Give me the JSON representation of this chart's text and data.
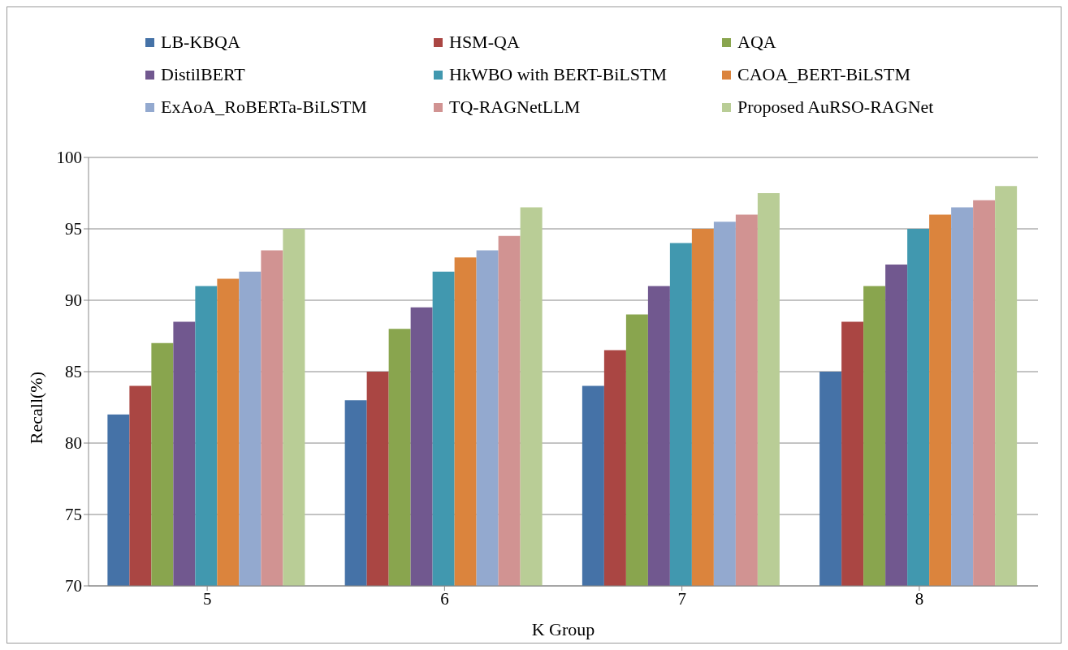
{
  "chart_data": {
    "type": "bar",
    "xlabel": "K Group",
    "ylabel": "Recall(%)",
    "categories": [
      "5",
      "6",
      "7",
      "8"
    ],
    "series": [
      {
        "name": "LB-KBQA",
        "color": "#4572a7",
        "values": [
          82,
          83,
          84,
          85
        ]
      },
      {
        "name": "HSM-QA",
        "color": "#aa4643",
        "values": [
          84,
          85,
          86.5,
          88.5
        ]
      },
      {
        "name": "AQA",
        "color": "#89a54e",
        "values": [
          87,
          88,
          89,
          91
        ]
      },
      {
        "name": "DistilBERT",
        "color": "#71588f",
        "values": [
          88.5,
          89.5,
          91,
          92.5
        ]
      },
      {
        "name": "HkWBO with BERT-BiLSTM",
        "color": "#4198af",
        "values": [
          91,
          92,
          94,
          95
        ]
      },
      {
        "name": "CAOA_BERT-BiLSTM",
        "color": "#db843d",
        "values": [
          91.5,
          93,
          95,
          96
        ]
      },
      {
        "name": "ExAoA_RoBERTa-BiLSTM",
        "color": "#93a9cf",
        "values": [
          92,
          93.5,
          95.5,
          96.5
        ]
      },
      {
        "name": "TQ-RAGNetLLM",
        "color": "#d19392",
        "values": [
          93.5,
          94.5,
          96,
          97
        ]
      },
      {
        "name": "Proposed AuRSO-RAGNet",
        "color": "#b9cd96",
        "values": [
          95,
          96.5,
          97.5,
          98
        ]
      }
    ],
    "ylim": [
      70,
      100
    ],
    "yticks": [
      70,
      75,
      80,
      85,
      90,
      95,
      100
    ],
    "grid": "y",
    "legend": "top"
  }
}
